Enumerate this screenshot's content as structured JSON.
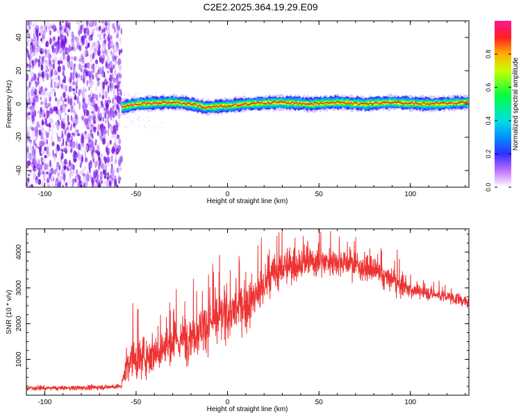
{
  "title": "C2E2.2025.364.19.29.E09",
  "chart_data": [
    {
      "type": "heatmap",
      "name": "spectrogram",
      "xlabel": "Height of straight line (km)",
      "ylabel": "Frequency (Hz)",
      "xlim": [
        -110,
        132
      ],
      "ylim": [
        -50,
        50
      ],
      "xticks": [
        -100,
        -50,
        0,
        50,
        100
      ],
      "yticks": [
        -40,
        -20,
        0,
        20,
        40
      ],
      "noise_region_x": [
        -110,
        -58
      ],
      "signal_band": {
        "x": [
          -58,
          132
        ],
        "center_freq_hz": 0,
        "waypoints": [
          [
            -58,
            -2
          ],
          [
            -50,
            0
          ],
          [
            -30,
            1
          ],
          [
            -20,
            0
          ],
          [
            -12,
            -2
          ],
          [
            0,
            -1
          ],
          [
            10,
            0
          ],
          [
            30,
            1
          ],
          [
            45,
            0
          ],
          [
            60,
            1
          ],
          [
            75,
            0
          ],
          [
            90,
            1
          ],
          [
            110,
            0
          ],
          [
            132,
            1
          ]
        ]
      },
      "colorbar": {
        "label": "Normalized spectral amplitude",
        "range": [
          0,
          1
        ],
        "ticks": [
          "0.0",
          "0.2",
          "0.4",
          "0.6",
          "0.8"
        ]
      }
    },
    {
      "type": "line",
      "name": "snr",
      "xlabel": "Height of straight line (km)",
      "ylabel": "SNR (10 * v/v)",
      "xlim": [
        -110,
        132
      ],
      "ylim": [
        0,
        4650
      ],
      "xticks": [
        -100,
        -50,
        0,
        50,
        100
      ],
      "yticks": [
        1000,
        2000,
        3000,
        4000
      ],
      "color": "#ee3333",
      "trend": {
        "x": [
          -110,
          -90,
          -70,
          -58,
          -55,
          -52,
          -45,
          -35,
          -25,
          -15,
          -5,
          5,
          15,
          20,
          25,
          30,
          40,
          50,
          60,
          70,
          80,
          90,
          97,
          100,
          110,
          120,
          132
        ],
        "y": [
          200,
          200,
          220,
          250,
          900,
          1000,
          1100,
          1300,
          1550,
          1850,
          2150,
          2400,
          2700,
          3050,
          3350,
          3550,
          3700,
          3750,
          3750,
          3650,
          3450,
          3200,
          3000,
          2950,
          2850,
          2750,
          2600
        ]
      },
      "spread": {
        "x": [
          -110,
          -58,
          -55,
          -20,
          10,
          30,
          60,
          95,
          100,
          132
        ],
        "y": [
          60,
          70,
          500,
          600,
          650,
          500,
          350,
          300,
          180,
          150
        ]
      }
    }
  ]
}
